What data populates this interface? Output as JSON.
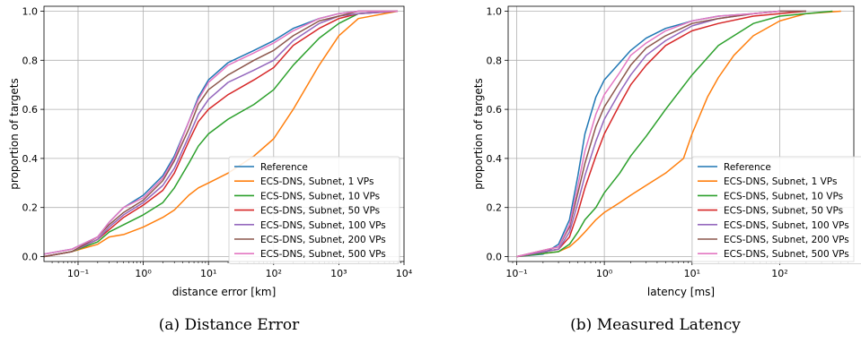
{
  "captions": [
    "(a) Distance Error",
    "(b) Measured Latency"
  ],
  "chart_data": [
    {
      "type": "line",
      "xscale": "log",
      "xlabel": "distance error [km]",
      "ylabel": "proportion of targets",
      "xlim": [
        0.03,
        10000
      ],
      "ylim": [
        -0.02,
        1.02
      ],
      "xticks": [
        0.1,
        1,
        10,
        100,
        1000,
        10000
      ],
      "xtick_labels": [
        "10⁻¹",
        "10⁰",
        "10¹",
        "10²",
        "10³",
        "10⁴"
      ],
      "yticks": [
        0.0,
        0.2,
        0.4,
        0.6,
        0.8,
        1.0
      ],
      "ytick_labels": [
        "0.0",
        "0.2",
        "0.4",
        "0.6",
        "0.8",
        "1.0"
      ],
      "grid": true,
      "legend_position": "lower-right",
      "series": [
        {
          "name": "Reference",
          "color": "#1f77b4",
          "x": [
            0.03,
            0.08,
            0.2,
            0.3,
            0.5,
            1,
            2,
            3,
            5,
            7,
            10,
            20,
            50,
            100,
            200,
            500,
            1000,
            2000,
            8000
          ],
          "y": [
            0.01,
            0.03,
            0.08,
            0.14,
            0.2,
            0.25,
            0.33,
            0.41,
            0.55,
            0.65,
            0.72,
            0.79,
            0.84,
            0.88,
            0.93,
            0.97,
            0.99,
            1.0,
            1.0
          ]
        },
        {
          "name": "ECS-DNS, Subnet, 1 VPs",
          "color": "#ff7f0e",
          "x": [
            0.03,
            0.08,
            0.2,
            0.3,
            0.5,
            1,
            2,
            3,
            5,
            7,
            10,
            20,
            50,
            100,
            200,
            500,
            1000,
            2000,
            8000
          ],
          "y": [
            0.0,
            0.02,
            0.05,
            0.08,
            0.09,
            0.12,
            0.16,
            0.19,
            0.25,
            0.28,
            0.3,
            0.34,
            0.41,
            0.48,
            0.6,
            0.78,
            0.9,
            0.97,
            1.0
          ]
        },
        {
          "name": "ECS-DNS, Subnet, 10 VPs",
          "color": "#2ca02c",
          "x": [
            0.03,
            0.08,
            0.2,
            0.3,
            0.5,
            1,
            2,
            3,
            5,
            7,
            10,
            20,
            50,
            100,
            200,
            500,
            1000,
            2000,
            8000
          ],
          "y": [
            0.0,
            0.02,
            0.06,
            0.1,
            0.13,
            0.17,
            0.22,
            0.28,
            0.38,
            0.45,
            0.5,
            0.56,
            0.62,
            0.68,
            0.78,
            0.89,
            0.95,
            0.99,
            1.0
          ]
        },
        {
          "name": "ECS-DNS, Subnet, 50 VPs",
          "color": "#d62728",
          "x": [
            0.03,
            0.08,
            0.2,
            0.3,
            0.5,
            1,
            2,
            3,
            5,
            7,
            10,
            20,
            50,
            100,
            200,
            500,
            1000,
            2000,
            8000
          ],
          "y": [
            0.0,
            0.02,
            0.07,
            0.11,
            0.16,
            0.21,
            0.27,
            0.34,
            0.47,
            0.55,
            0.6,
            0.66,
            0.72,
            0.77,
            0.86,
            0.93,
            0.97,
            0.99,
            1.0
          ]
        },
        {
          "name": "ECS-DNS, Subnet, 100 VPs",
          "color": "#9467bd",
          "x": [
            0.03,
            0.08,
            0.2,
            0.3,
            0.5,
            1,
            2,
            3,
            5,
            7,
            10,
            20,
            50,
            100,
            200,
            500,
            1000,
            2000,
            8000
          ],
          "y": [
            0.0,
            0.02,
            0.07,
            0.12,
            0.17,
            0.22,
            0.29,
            0.36,
            0.49,
            0.58,
            0.64,
            0.71,
            0.76,
            0.8,
            0.88,
            0.95,
            0.98,
            0.99,
            1.0
          ]
        },
        {
          "name": "ECS-DNS, Subnet, 200 VPs",
          "color": "#8c564b",
          "x": [
            0.03,
            0.08,
            0.2,
            0.3,
            0.5,
            1,
            2,
            3,
            5,
            7,
            10,
            20,
            50,
            100,
            200,
            500,
            1000,
            2000,
            8000
          ],
          "y": [
            0.0,
            0.02,
            0.08,
            0.13,
            0.18,
            0.23,
            0.31,
            0.39,
            0.52,
            0.62,
            0.68,
            0.74,
            0.8,
            0.84,
            0.9,
            0.96,
            0.98,
            1.0,
            1.0
          ]
        },
        {
          "name": "ECS-DNS, Subnet, 500 VPs",
          "color": "#e377c2",
          "x": [
            0.03,
            0.08,
            0.2,
            0.3,
            0.5,
            1,
            2,
            3,
            5,
            7,
            10,
            20,
            50,
            100,
            200,
            500,
            1000,
            2000,
            8000
          ],
          "y": [
            0.01,
            0.03,
            0.08,
            0.14,
            0.2,
            0.24,
            0.32,
            0.4,
            0.55,
            0.64,
            0.71,
            0.78,
            0.83,
            0.87,
            0.92,
            0.97,
            0.99,
            1.0,
            1.0
          ]
        }
      ]
    },
    {
      "type": "line",
      "xscale": "log",
      "xlabel": "latency [ms]",
      "ylabel": "proportion of targets",
      "xlim": [
        0.08,
        700
      ],
      "ylim": [
        -0.02,
        1.02
      ],
      "xticks": [
        0.1,
        1,
        10,
        100
      ],
      "xtick_labels": [
        "10⁻¹",
        "10⁰",
        "10¹",
        "10²"
      ],
      "yticks": [
        0.0,
        0.2,
        0.4,
        0.6,
        0.8,
        1.0
      ],
      "ytick_labels": [
        "0.0",
        "0.2",
        "0.4",
        "0.6",
        "0.8",
        "1.0"
      ],
      "grid": true,
      "legend_position": "lower-right",
      "series": [
        {
          "name": "Reference",
          "color": "#1f77b4",
          "x": [
            0.1,
            0.2,
            0.3,
            0.4,
            0.5,
            0.6,
            0.8,
            1,
            1.5,
            2,
            3,
            5,
            10,
            20,
            50,
            100
          ],
          "y": [
            0.0,
            0.01,
            0.05,
            0.15,
            0.33,
            0.5,
            0.65,
            0.72,
            0.79,
            0.84,
            0.89,
            0.93,
            0.96,
            0.98,
            0.99,
            1.0
          ]
        },
        {
          "name": "ECS-DNS, Subnet, 1 VPs",
          "color": "#ff7f0e",
          "x": [
            0.1,
            0.3,
            0.4,
            0.5,
            0.6,
            0.8,
            1,
            1.5,
            2,
            3,
            5,
            8,
            10,
            15,
            20,
            30,
            50,
            100,
            200,
            500
          ],
          "y": [
            0.0,
            0.02,
            0.04,
            0.07,
            0.1,
            0.15,
            0.18,
            0.22,
            0.25,
            0.29,
            0.34,
            0.4,
            0.5,
            0.65,
            0.73,
            0.82,
            0.9,
            0.96,
            0.99,
            1.0
          ]
        },
        {
          "name": "ECS-DNS, Subnet, 10 VPs",
          "color": "#2ca02c",
          "x": [
            0.1,
            0.3,
            0.4,
            0.5,
            0.6,
            0.8,
            1,
            1.5,
            2,
            3,
            5,
            10,
            20,
            50,
            100,
            200,
            400
          ],
          "y": [
            0.0,
            0.02,
            0.05,
            0.1,
            0.15,
            0.2,
            0.26,
            0.34,
            0.41,
            0.49,
            0.6,
            0.74,
            0.86,
            0.95,
            0.98,
            0.99,
            1.0
          ]
        },
        {
          "name": "ECS-DNS, Subnet, 50 VPs",
          "color": "#d62728",
          "x": [
            0.1,
            0.3,
            0.4,
            0.5,
            0.6,
            0.8,
            1,
            1.5,
            2,
            3,
            5,
            10,
            20,
            50,
            100,
            200
          ],
          "y": [
            0.0,
            0.03,
            0.08,
            0.18,
            0.28,
            0.41,
            0.5,
            0.62,
            0.7,
            0.78,
            0.86,
            0.92,
            0.95,
            0.98,
            0.99,
            1.0
          ]
        },
        {
          "name": "ECS-DNS, Subnet, 100 VPs",
          "color": "#9467bd",
          "x": [
            0.1,
            0.3,
            0.4,
            0.5,
            0.6,
            0.8,
            1,
            1.5,
            2,
            3,
            5,
            10,
            20,
            50,
            100,
            200
          ],
          "y": [
            0.0,
            0.03,
            0.1,
            0.22,
            0.33,
            0.47,
            0.56,
            0.67,
            0.74,
            0.82,
            0.88,
            0.94,
            0.97,
            0.99,
            1.0,
            1.0
          ]
        },
        {
          "name": "ECS-DNS, Subnet, 200 VPs",
          "color": "#8c564b",
          "x": [
            0.1,
            0.3,
            0.4,
            0.5,
            0.6,
            0.8,
            1,
            1.5,
            2,
            3,
            5,
            10,
            20,
            50,
            100,
            200
          ],
          "y": [
            0.0,
            0.04,
            0.12,
            0.26,
            0.38,
            0.53,
            0.61,
            0.71,
            0.78,
            0.85,
            0.9,
            0.95,
            0.97,
            0.99,
            1.0,
            1.0
          ]
        },
        {
          "name": "ECS-DNS, Subnet, 500 VPs",
          "color": "#e377c2",
          "x": [
            0.1,
            0.3,
            0.4,
            0.5,
            0.6,
            0.8,
            1,
            1.5,
            2,
            3,
            5,
            10,
            20,
            50,
            100
          ],
          "y": [
            0.0,
            0.04,
            0.13,
            0.29,
            0.43,
            0.58,
            0.66,
            0.75,
            0.82,
            0.87,
            0.92,
            0.96,
            0.98,
            0.99,
            1.0
          ]
        }
      ]
    }
  ]
}
